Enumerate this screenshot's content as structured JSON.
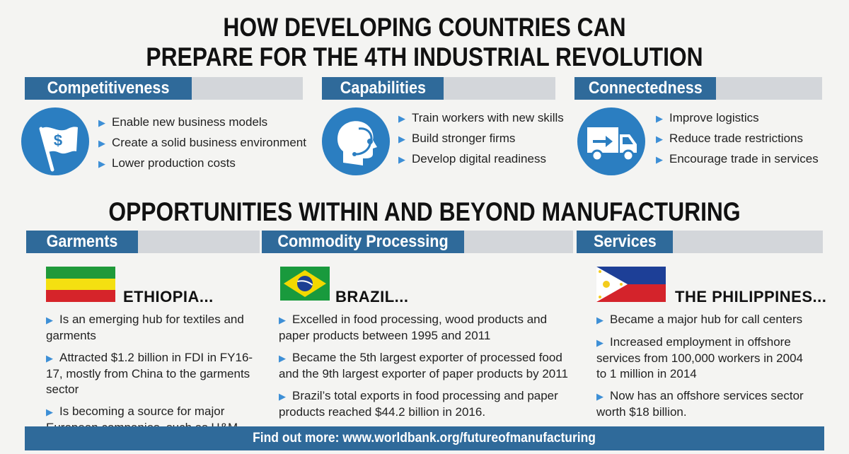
{
  "title": {
    "line1": "HOW DEVELOPING COUNTRIES CAN",
    "line2": "PREPARE FOR THE 4TH INDUSTRIAL REVOLUTION"
  },
  "prepare": [
    {
      "header": "Competitiveness",
      "icon": "dollar-flag-icon",
      "bullets": [
        "Enable new business models",
        "Create a solid business environment",
        "Lower production costs"
      ]
    },
    {
      "header": "Capabilities",
      "icon": "headset-person-icon",
      "bullets": [
        "Train workers with new skills",
        "Build stronger firms",
        "Develop digital readiness"
      ]
    },
    {
      "header": "Connectedness",
      "icon": "delivery-truck-icon",
      "bullets": [
        "Improve logistics",
        "Reduce trade restrictions",
        "Encourage trade in services"
      ]
    }
  ],
  "opportunities_title": "OPPORTUNITIES WITHIN AND BEYOND MANUFACTURING",
  "opportunities": [
    {
      "header": "Garments",
      "country": "ETHIOPIA...",
      "flag": "ethiopia-flag",
      "points": [
        "Is an emerging hub for textiles and garments",
        "Attracted $1.2 billion in FDI in FY16-17, mostly from China to the garments sector",
        "Is becoming a source for major European companies, such as H&M."
      ]
    },
    {
      "header": "Commodity Processing",
      "country": "BRAZIL...",
      "flag": "brazil-flag",
      "points": [
        "Excelled in food processing, wood products and paper products between 1995 and 2011",
        "Became the 5th largest exporter of processed food and the 9th largest exporter of paper products by 2011",
        "Brazil’s total exports in food processing and paper products reached $44.2 billion in 2016."
      ]
    },
    {
      "header": "Services",
      "country": "THE PHILIPPINES...",
      "flag": "philippines-flag",
      "points": [
        "Became a major hub for call centers",
        "Increased employment in offshore services from 100,000 workers in 2004 to 1 million in 2014",
        "Now has an offshore services sector worth $18 billion."
      ]
    }
  ],
  "footer": "Find out more: www.worldbank.org/futureofmanufacturing",
  "colors": {
    "accent": "#2f6a9a",
    "icon_blue": "#2b7ec1",
    "bullet": "#3d8fd6",
    "bar_grey": "#d3d6da"
  }
}
